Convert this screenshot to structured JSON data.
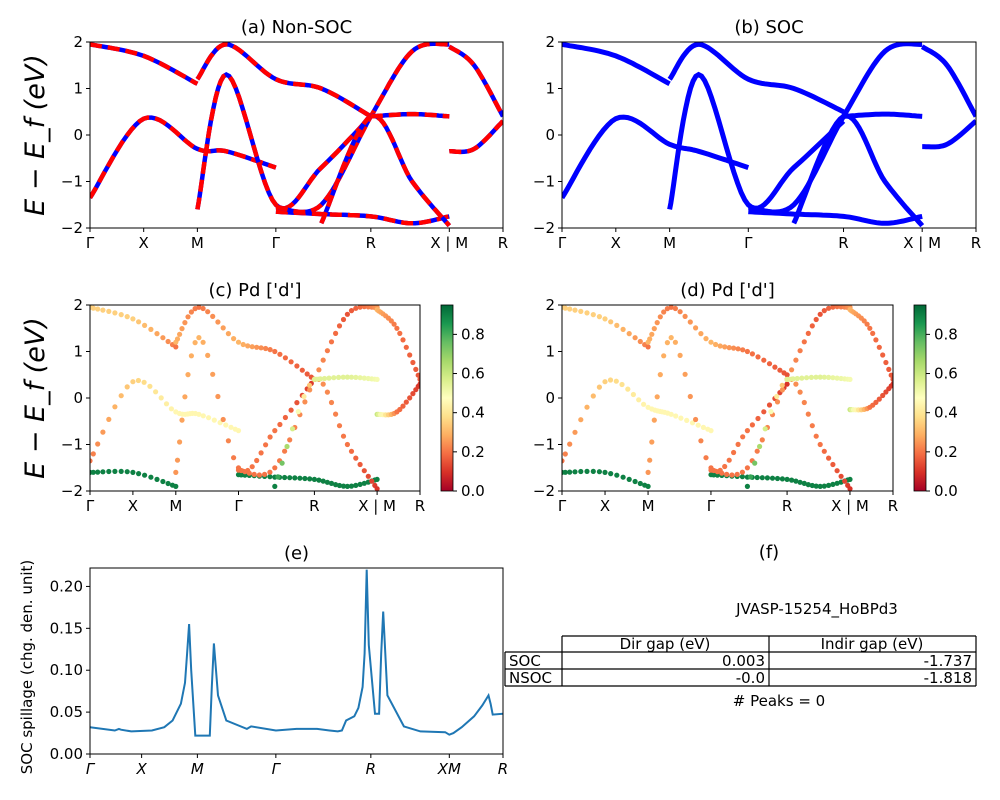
{
  "figure": {
    "material_id": "JVASP-15254_HoBPd3",
    "energy_axis_label": "E − E_f (eV)"
  },
  "chart_data": [
    {
      "id": "a",
      "type": "line",
      "title": "(a) Non-SOC",
      "ylabel": "E − E_f (eV)",
      "ylim": [
        -2,
        2
      ],
      "yticks": [
        -2,
        -1,
        0,
        1,
        2
      ],
      "kpath_labels": [
        "Γ",
        "X",
        "M",
        "Γ",
        "R",
        "X | M",
        "R"
      ],
      "kpath_positions": [
        0,
        0.13,
        0.26,
        0.45,
        0.68,
        0.87,
        1.0
      ],
      "series_colors": [
        "#ff0000",
        "#0000ff"
      ],
      "bands": [
        {
          "x": [
            0,
            0.13,
            0.26
          ],
          "y": [
            1.95,
            1.7,
            1.1
          ]
        },
        {
          "x": [
            0,
            0.13,
            0.26,
            0.33,
            0.45
          ],
          "y": [
            -1.35,
            0.35,
            -0.3,
            -0.35,
            -0.7
          ]
        },
        {
          "x": [
            0.26,
            0.33,
            0.45,
            0.56,
            0.68
          ],
          "y": [
            1.2,
            1.95,
            1.2,
            1.0,
            0.4
          ]
        },
        {
          "x": [
            0.26,
            0.33,
            0.45,
            0.56,
            0.68
          ],
          "y": [
            -1.6,
            1.3,
            -1.5,
            -0.7,
            0.4
          ]
        },
        {
          "x": [
            0.45,
            0.56,
            0.68,
            0.78,
            0.87
          ],
          "y": [
            -1.65,
            -1.7,
            -1.75,
            -1.9,
            -1.75
          ]
        },
        {
          "x": [
            0.45,
            0.56,
            0.68,
            0.78,
            0.87
          ],
          "y": [
            -1.55,
            -1.5,
            0.4,
            1.8,
            1.95
          ]
        },
        {
          "x": [
            0.56,
            0.68,
            0.78,
            0.87
          ],
          "y": [
            -1.9,
            0.4,
            -1.0,
            -1.95
          ]
        },
        {
          "x": [
            0.87,
            0.93,
            1.0
          ],
          "y": [
            1.9,
            1.5,
            0.4
          ]
        },
        {
          "x": [
            0.68,
            0.78,
            0.87
          ],
          "y": [
            0.4,
            0.45,
            0.4
          ]
        },
        {
          "x": [
            0.87,
            0.93,
            1.0
          ],
          "y": [
            -0.35,
            -0.3,
            0.3
          ]
        }
      ]
    },
    {
      "id": "b",
      "type": "line",
      "title": "(b) SOC",
      "ylim": [
        -2,
        2
      ],
      "yticks": [
        -2,
        -1,
        0,
        1,
        2
      ],
      "kpath_labels": [
        "Γ",
        "X",
        "M",
        "Γ",
        "R",
        "X | M",
        "R"
      ],
      "kpath_positions": [
        0,
        0.13,
        0.26,
        0.45,
        0.68,
        0.87,
        1.0
      ],
      "series_colors": [
        "#0000ff"
      ],
      "bands": [
        {
          "x": [
            0,
            0.13,
            0.26
          ],
          "y": [
            1.95,
            1.7,
            1.1
          ]
        },
        {
          "x": [
            0,
            0.13,
            0.26,
            0.33,
            0.45
          ],
          "y": [
            -1.35,
            0.35,
            -0.2,
            -0.35,
            -0.7
          ]
        },
        {
          "x": [
            0.26,
            0.33,
            0.45,
            0.56,
            0.68
          ],
          "y": [
            1.2,
            1.95,
            1.2,
            1.0,
            0.5
          ]
        },
        {
          "x": [
            0.26,
            0.33,
            0.45,
            0.56,
            0.68
          ],
          "y": [
            -1.6,
            1.3,
            -1.5,
            -0.7,
            0.3
          ]
        },
        {
          "x": [
            0.45,
            0.56,
            0.68,
            0.78,
            0.87
          ],
          "y": [
            -1.65,
            -1.7,
            -1.75,
            -1.9,
            -1.75
          ]
        },
        {
          "x": [
            0.45,
            0.56,
            0.68,
            0.78,
            0.87
          ],
          "y": [
            -1.55,
            -1.5,
            0.4,
            1.8,
            1.95
          ]
        },
        {
          "x": [
            0.56,
            0.68,
            0.78,
            0.87
          ],
          "y": [
            -1.9,
            0.4,
            -1.0,
            -1.95
          ]
        },
        {
          "x": [
            0.87,
            0.93,
            1.0
          ],
          "y": [
            1.9,
            1.5,
            0.4
          ]
        },
        {
          "x": [
            0.68,
            0.78,
            0.87
          ],
          "y": [
            0.4,
            0.45,
            0.4
          ]
        },
        {
          "x": [
            0.87,
            0.93,
            1.0
          ],
          "y": [
            -0.25,
            -0.2,
            0.3
          ]
        }
      ]
    },
    {
      "id": "c",
      "type": "scatter",
      "title": "(c)  Pd ['d']",
      "ylabel": "E − E_f (eV)",
      "ylim": [
        -2,
        2
      ],
      "yticks": [
        -2,
        -1,
        0,
        1,
        2
      ],
      "kpath_labels": [
        "Γ",
        "X",
        "M",
        "Γ",
        "R",
        "X | M",
        "R"
      ],
      "kpath_positions": [
        0,
        0.13,
        0.26,
        0.45,
        0.68,
        0.87,
        1.0
      ],
      "colorbar": {
        "colormap": "RdYlGn",
        "range": [
          0.0,
          0.95
        ],
        "ticks": [
          0.0,
          0.2,
          0.4,
          0.6,
          0.8
        ]
      },
      "bands": [
        {
          "x": [
            0,
            0.13,
            0.26
          ],
          "y": [
            1.95,
            1.7,
            1.1
          ],
          "w": [
            0.35,
            0.35,
            0.2
          ]
        },
        {
          "x": [
            0,
            0.13,
            0.26,
            0.33,
            0.45
          ],
          "y": [
            -1.35,
            0.35,
            -0.3,
            -0.35,
            -0.7
          ],
          "w": [
            0.2,
            0.35,
            0.45,
            0.45,
            0.45
          ]
        },
        {
          "x": [
            0.26,
            0.33,
            0.45,
            0.56,
            0.68
          ],
          "y": [
            1.2,
            1.95,
            1.2,
            1.0,
            0.4
          ],
          "w": [
            0.3,
            0.2,
            0.3,
            0.2,
            0.15
          ]
        },
        {
          "x": [
            0.26,
            0.33,
            0.45,
            0.56,
            0.68
          ],
          "y": [
            -1.6,
            1.3,
            -1.5,
            -0.7,
            0.4
          ],
          "w": [
            0.25,
            0.3,
            0.2,
            0.2,
            0.1
          ]
        },
        {
          "x": [
            0.45,
            0.56,
            0.68,
            0.78,
            0.87
          ],
          "y": [
            -1.65,
            -1.7,
            -1.75,
            -1.9,
            -1.75
          ],
          "w": [
            0.9,
            0.9,
            0.9,
            0.9,
            0.9
          ]
        },
        {
          "x": [
            0.45,
            0.56,
            0.68,
            0.78,
            0.87
          ],
          "y": [
            -1.55,
            -1.5,
            0.4,
            1.8,
            1.95
          ],
          "w": [
            0.2,
            0.2,
            0.25,
            0.15,
            0.25
          ]
        },
        {
          "x": [
            0.56,
            0.68,
            0.78,
            0.87
          ],
          "y": [
            -1.9,
            0.4,
            -1.0,
            -1.95
          ],
          "w": [
            0.9,
            0.25,
            0.2,
            0.1
          ]
        },
        {
          "x": [
            0.87,
            0.93,
            1.0
          ],
          "y": [
            1.9,
            1.5,
            0.4
          ],
          "w": [
            0.3,
            0.2,
            0.15
          ]
        },
        {
          "x": [
            0.68,
            0.78,
            0.87
          ],
          "y": [
            0.4,
            0.45,
            0.4
          ],
          "w": [
            0.55,
            0.55,
            0.5
          ]
        },
        {
          "x": [
            0.87,
            0.93,
            1.0
          ],
          "y": [
            -0.35,
            -0.3,
            0.3
          ],
          "w": [
            0.6,
            0.2,
            0.1
          ]
        },
        {
          "x": [
            0,
            0.13,
            0.26
          ],
          "y": [
            -1.6,
            -1.6,
            -1.9
          ],
          "w": [
            0.9,
            0.9,
            0.9
          ]
        }
      ]
    },
    {
      "id": "d",
      "type": "scatter",
      "title": "(d) Pd ['d']",
      "ylim": [
        -2,
        2
      ],
      "yticks": [
        -2,
        -1,
        0,
        1,
        2
      ],
      "kpath_labels": [
        "Γ",
        "X",
        "M",
        "Γ",
        "R",
        "X | M",
        "R"
      ],
      "kpath_positions": [
        0,
        0.13,
        0.26,
        0.45,
        0.68,
        0.87,
        1.0
      ],
      "colorbar": {
        "colormap": "RdYlGn",
        "range": [
          0.0,
          0.95
        ],
        "ticks": [
          0.0,
          0.2,
          0.4,
          0.6,
          0.8
        ]
      },
      "bands": [
        {
          "x": [
            0,
            0.13,
            0.26
          ],
          "y": [
            1.95,
            1.7,
            1.1
          ],
          "w": [
            0.35,
            0.35,
            0.2
          ]
        },
        {
          "x": [
            0,
            0.13,
            0.26,
            0.33,
            0.45
          ],
          "y": [
            -1.35,
            0.35,
            -0.2,
            -0.35,
            -0.7
          ],
          "w": [
            0.2,
            0.35,
            0.45,
            0.45,
            0.45
          ]
        },
        {
          "x": [
            0.26,
            0.33,
            0.45,
            0.56,
            0.68
          ],
          "y": [
            1.2,
            1.95,
            1.2,
            1.0,
            0.5
          ],
          "w": [
            0.3,
            0.2,
            0.3,
            0.2,
            0.15
          ]
        },
        {
          "x": [
            0.26,
            0.33,
            0.45,
            0.56,
            0.68
          ],
          "y": [
            -1.6,
            1.3,
            -1.5,
            -0.7,
            0.3
          ],
          "w": [
            0.25,
            0.3,
            0.2,
            0.2,
            0.1
          ]
        },
        {
          "x": [
            0.45,
            0.56,
            0.68,
            0.78,
            0.87
          ],
          "y": [
            -1.65,
            -1.7,
            -1.75,
            -1.9,
            -1.75
          ],
          "w": [
            0.9,
            0.9,
            0.9,
            0.9,
            0.9
          ]
        },
        {
          "x": [
            0.45,
            0.56,
            0.68,
            0.78,
            0.87
          ],
          "y": [
            -1.55,
            -1.5,
            0.4,
            1.8,
            1.95
          ],
          "w": [
            0.2,
            0.2,
            0.25,
            0.15,
            0.25
          ]
        },
        {
          "x": [
            0.56,
            0.68,
            0.78,
            0.87
          ],
          "y": [
            -1.9,
            0.4,
            -1.0,
            -1.95
          ],
          "w": [
            0.9,
            0.25,
            0.2,
            0.1
          ]
        },
        {
          "x": [
            0.87,
            0.93,
            1.0
          ],
          "y": [
            1.9,
            1.5,
            0.4
          ],
          "w": [
            0.3,
            0.2,
            0.15
          ]
        },
        {
          "x": [
            0.68,
            0.78,
            0.87
          ],
          "y": [
            0.4,
            0.45,
            0.4
          ],
          "w": [
            0.55,
            0.55,
            0.5
          ]
        },
        {
          "x": [
            0.87,
            0.93,
            1.0
          ],
          "y": [
            -0.25,
            -0.2,
            0.3
          ],
          "w": [
            0.6,
            0.2,
            0.1
          ]
        },
        {
          "x": [
            0,
            0.13,
            0.26
          ],
          "y": [
            -1.6,
            -1.6,
            -1.9
          ],
          "w": [
            0.9,
            0.9,
            0.9
          ]
        }
      ]
    },
    {
      "id": "e",
      "type": "line",
      "title": "(e)",
      "ylabel": "SOC spillage (chg. den. unit)",
      "ylim": [
        0.0,
        0.222
      ],
      "yticks": [
        0.0,
        0.05,
        0.1,
        0.15,
        0.2
      ],
      "ytick_labels": [
        "0.00",
        "0.05",
        "0.10",
        "0.15",
        "0.20"
      ],
      "kpath_labels": [
        "Γ",
        "X",
        "M",
        "Γ",
        "R",
        "XM",
        "R"
      ],
      "kpath_positions": [
        0,
        0.125,
        0.26,
        0.45,
        0.68,
        0.87,
        1.0
      ],
      "line_color": "#1f77b4",
      "x": [
        0.0,
        0.06,
        0.07,
        0.075,
        0.1,
        0.15,
        0.18,
        0.2,
        0.22,
        0.23,
        0.235,
        0.24,
        0.245,
        0.255,
        0.29,
        0.295,
        0.3,
        0.31,
        0.33,
        0.38,
        0.39,
        0.45,
        0.5,
        0.55,
        0.58,
        0.6,
        0.61,
        0.62,
        0.64,
        0.65,
        0.66,
        0.665,
        0.67,
        0.675,
        0.69,
        0.7,
        0.705,
        0.71,
        0.72,
        0.76,
        0.8,
        0.86,
        0.87,
        0.88,
        0.9,
        0.93,
        0.95,
        0.965,
        0.97,
        0.975,
        1.0
      ],
      "y": [
        0.032,
        0.028,
        0.03,
        0.029,
        0.027,
        0.028,
        0.032,
        0.04,
        0.06,
        0.085,
        0.12,
        0.155,
        0.1,
        0.022,
        0.022,
        0.08,
        0.132,
        0.07,
        0.04,
        0.03,
        0.033,
        0.028,
        0.03,
        0.03,
        0.028,
        0.027,
        0.028,
        0.04,
        0.045,
        0.055,
        0.08,
        0.12,
        0.22,
        0.13,
        0.048,
        0.048,
        0.12,
        0.17,
        0.07,
        0.033,
        0.027,
        0.026,
        0.023,
        0.025,
        0.032,
        0.045,
        0.058,
        0.07,
        0.06,
        0.047,
        0.048
      ]
    }
  ],
  "table": {
    "title": "(f)",
    "material": "JVASP-15254_HoBPd3",
    "columns": [
      "",
      "Dir gap (eV)",
      "Indir gap (eV)"
    ],
    "rows": [
      [
        "SOC",
        "0.003",
        "-1.737"
      ],
      [
        "NSOC",
        "-0.0",
        "-1.818"
      ]
    ],
    "peaks_label": "# Peaks = 0"
  }
}
